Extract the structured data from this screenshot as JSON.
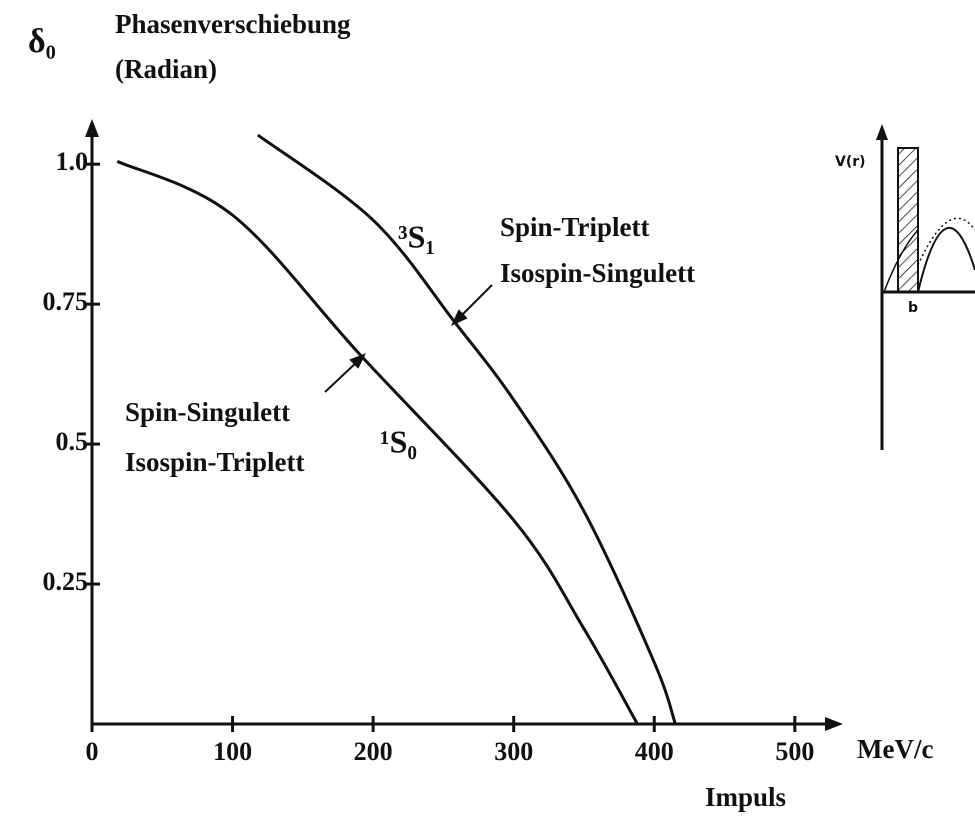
{
  "chart_data": {
    "type": "line",
    "symbol": "δ₀",
    "y_label": [
      "Phasenverschiebung",
      "(Radian)"
    ],
    "x_unit": "MeV/c",
    "x_label": "Impuls",
    "xlim": [
      0,
      530
    ],
    "ylim": [
      0,
      1.07
    ],
    "xticks": [
      0,
      100,
      200,
      300,
      400,
      500
    ],
    "yticks": [
      0.25,
      0.5,
      0.75,
      {
        "value": 1,
        "label": "1.0"
      }
    ],
    "color": "#111111",
    "series": [
      {
        "name": "¹S₀",
        "description": [
          "Spin-Singulett",
          "Isospin-Triplett"
        ],
        "x": [
          18,
          100,
          191,
          300,
          350,
          388
        ],
        "values": [
          1.005,
          0.909,
          0.659,
          0.364,
          0.17,
          0
        ]
      },
      {
        "name": "³S₁",
        "description": [
          "Spin-Triplett",
          "Isospin-Singulett"
        ],
        "x": [
          118,
          200,
          258,
          300,
          350,
          400,
          415
        ],
        "values": [
          1.052,
          0.9,
          0.718,
          0.579,
          0.38,
          0.11,
          0
        ]
      }
    ],
    "inset": {
      "labels": [
        "V(r)",
        "b"
      ]
    }
  }
}
